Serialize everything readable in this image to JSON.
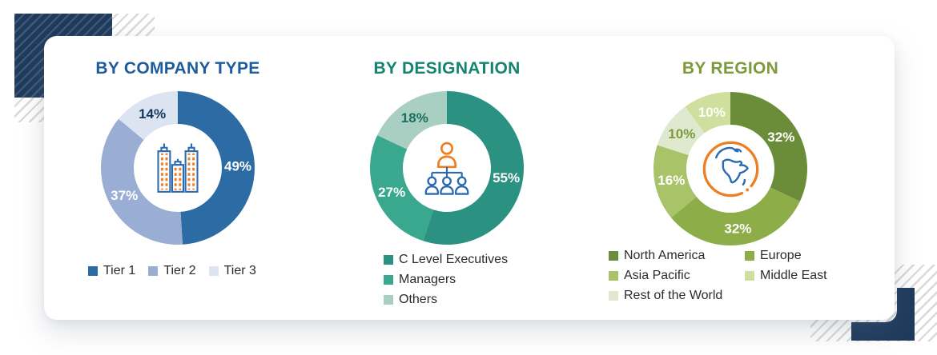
{
  "colors": {
    "navy": "#1e3a5c",
    "hatch_gray": "#d9d9d9",
    "card_bg": "#ffffff",
    "legend_text": "#2b2b2b",
    "icon_orange": "#ee7e22",
    "icon_blue": "#2a6ab0"
  },
  "decorations": {
    "top_left_accent": "navy-hatched-rectangle",
    "bottom_right_accent": "navy-l-bracket",
    "hatch_style": "diagonal-stripes"
  },
  "chart_data": [
    {
      "type": "donut",
      "title": "BY COMPANY TYPE",
      "title_color": "#1d5c9c",
      "center_icon": "buildings-icon",
      "units": "%",
      "start_angle_deg": 0,
      "direction": "clockwise",
      "slices": [
        {
          "label": "Tier 1",
          "value": 49,
          "color": "#2d6ba4",
          "label_color": "#ffffff"
        },
        {
          "label": "Tier 2",
          "value": 37,
          "color": "#9aaed4",
          "label_color": "#ffffff"
        },
        {
          "label": "Tier 3",
          "value": 14,
          "color": "#dde4f1",
          "label_color": "#14365c"
        }
      ],
      "legend": [
        {
          "label": "Tier 1",
          "color": "#2d6ba4"
        },
        {
          "label": "Tier 2",
          "color": "#9aaed4"
        },
        {
          "label": "Tier 3",
          "color": "#dde4f1"
        }
      ],
      "legend_layout": "row"
    },
    {
      "type": "donut",
      "title": "BY DESIGNATION",
      "title_color": "#13846e",
      "center_icon": "org-chart-icon",
      "units": "%",
      "start_angle_deg": 0,
      "direction": "clockwise",
      "slices": [
        {
          "label": "C Level Executives",
          "value": 55,
          "color": "#2b9181",
          "label_color": "#ffffff"
        },
        {
          "label": "Managers",
          "value": 27,
          "color": "#3aa78f",
          "label_color": "#ffffff"
        },
        {
          "label": "Others",
          "value": 18,
          "color": "#a9cfc2",
          "label_color": "#17705e"
        }
      ],
      "legend": [
        {
          "label": "C Level Executives",
          "color": "#2b9181"
        },
        {
          "label": "Managers",
          "color": "#3aa78f"
        },
        {
          "label": "Others",
          "color": "#a9cfc2"
        }
      ],
      "legend_layout": "column"
    },
    {
      "type": "donut",
      "title": "BY REGION",
      "title_color": "#7d9a3b",
      "center_icon": "globe-icon",
      "units": "%",
      "start_angle_deg": 0,
      "direction": "clockwise",
      "slices": [
        {
          "label": "North America",
          "value": 32,
          "color": "#6b8c38",
          "label_color": "#ffffff"
        },
        {
          "label": "Europe",
          "value": 32,
          "color": "#8dad49",
          "label_color": "#ffffff"
        },
        {
          "label": "Asia Pacific",
          "value": 16,
          "color": "#a9c369",
          "label_color": "#ffffff"
        },
        {
          "label": "Rest of the World",
          "value": 10,
          "color": "#dfe9cf",
          "label_color": "#7d9a3b"
        },
        {
          "label": "Middle East",
          "value": 10,
          "color": "#cfdf9e",
          "label_color": "#ffffff"
        }
      ],
      "legend": [
        {
          "label": "North America",
          "color": "#6b8c38"
        },
        {
          "label": "Europe",
          "color": "#8dad49"
        },
        {
          "label": "Asia Pacific",
          "color": "#a9c369"
        },
        {
          "label": "Middle East",
          "color": "#cfdf9e"
        },
        {
          "label": "Rest of the World",
          "color": "#dfe9cf"
        }
      ],
      "legend_layout": "grid-2col"
    }
  ]
}
